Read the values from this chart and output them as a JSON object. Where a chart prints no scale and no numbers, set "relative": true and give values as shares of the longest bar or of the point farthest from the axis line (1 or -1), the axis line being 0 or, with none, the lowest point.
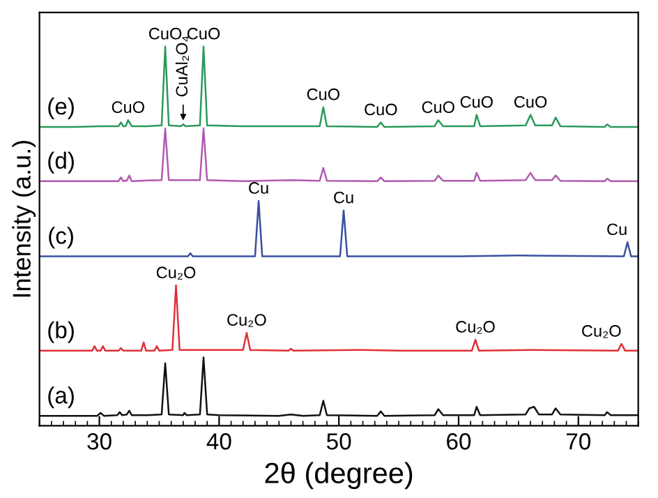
{
  "chart_data": {
    "type": "line",
    "relative": true,
    "xlabel": "2θ (degree)",
    "ylabel": "Intensity (a.u.)",
    "xlim": [
      25,
      75
    ],
    "xticks": [
      30,
      40,
      50,
      60,
      70
    ],
    "grid": false,
    "legend": false,
    "marker": "none",
    "line_style": "solid",
    "series": [
      {
        "color": "#111111",
        "x": [
          25,
          28,
          29.8,
          30.1,
          30.4,
          31.5,
          31.7,
          31.9,
          32.3,
          32.5,
          32.7,
          34,
          35.2,
          35.5,
          35.8,
          37,
          37.1,
          37.3,
          38.4,
          38.7,
          39,
          40,
          45,
          46,
          47,
          48.4,
          48.7,
          49,
          53.2,
          53.5,
          53.8,
          58,
          58.3,
          58.7,
          61.3,
          61.5,
          61.8,
          65.6,
          65.9,
          66.3,
          66.7,
          67.8,
          68.1,
          68.5,
          72.2,
          72.4,
          72.7,
          75
        ],
        "values": [
          0.026,
          0.026,
          0.026,
          0.034,
          0.026,
          0.028,
          0.036,
          0.028,
          0.03,
          0.04,
          0.028,
          0.028,
          0.03,
          0.165,
          0.03,
          0.028,
          0.034,
          0.028,
          0.03,
          0.18,
          0.03,
          0.028,
          0.026,
          0.03,
          0.026,
          0.028,
          0.066,
          0.028,
          0.026,
          0.038,
          0.026,
          0.028,
          0.044,
          0.028,
          0.028,
          0.05,
          0.028,
          0.03,
          0.046,
          0.05,
          0.03,
          0.03,
          0.046,
          0.03,
          0.028,
          0.036,
          0.028,
          0.028
        ]
      },
      {
        "color": "#e03038",
        "x": [
          25,
          29.4,
          29.6,
          29.8,
          30.1,
          30.3,
          30.5,
          31.6,
          31.8,
          32,
          33.5,
          33.7,
          33.9,
          34.6,
          34.8,
          35,
          36.1,
          36.4,
          36.7,
          42,
          42.3,
          42.6,
          45.8,
          46,
          46.2,
          52,
          55,
          61.1,
          61.4,
          61.7,
          66,
          73.3,
          73.6,
          73.9,
          75
        ],
        "values": [
          0.198,
          0.198,
          0.21,
          0.198,
          0.198,
          0.21,
          0.198,
          0.198,
          0.205,
          0.198,
          0.198,
          0.22,
          0.198,
          0.198,
          0.21,
          0.198,
          0.2,
          0.37,
          0.2,
          0.2,
          0.245,
          0.2,
          0.198,
          0.203,
          0.198,
          0.2,
          0.198,
          0.198,
          0.227,
          0.198,
          0.2,
          0.198,
          0.216,
          0.198,
          0.198
        ]
      },
      {
        "color": "#3a4fa0",
        "x": [
          25,
          30,
          37.4,
          37.6,
          37.8,
          43,
          43.3,
          43.6,
          47,
          50.1,
          50.4,
          50.7,
          55,
          60,
          65,
          73.8,
          74.1,
          74.4,
          75
        ],
        "values": [
          0.447,
          0.447,
          0.447,
          0.455,
          0.447,
          0.447,
          0.593,
          0.447,
          0.447,
          0.447,
          0.568,
          0.447,
          0.447,
          0.447,
          0.449,
          0.447,
          0.484,
          0.447,
          0.447
        ]
      },
      {
        "color": "#b05ab0",
        "x": [
          25,
          28,
          30,
          31.6,
          31.8,
          32,
          32.3,
          32.5,
          32.7,
          34,
          35.2,
          35.5,
          35.8,
          37,
          38.4,
          38.7,
          39,
          42,
          46,
          48.4,
          48.7,
          49,
          53.2,
          53.5,
          53.8,
          58,
          58.3,
          58.7,
          61.3,
          61.5,
          61.8,
          65.6,
          66,
          66.4,
          67.8,
          68.1,
          68.5,
          72.2,
          72.4,
          72.7,
          75
        ],
        "values": [
          0.645,
          0.645,
          0.645,
          0.645,
          0.655,
          0.645,
          0.647,
          0.66,
          0.645,
          0.647,
          0.648,
          0.784,
          0.648,
          0.648,
          0.648,
          0.784,
          0.648,
          0.645,
          0.648,
          0.646,
          0.68,
          0.646,
          0.645,
          0.655,
          0.645,
          0.646,
          0.66,
          0.646,
          0.646,
          0.667,
          0.646,
          0.648,
          0.667,
          0.648,
          0.648,
          0.66,
          0.646,
          0.645,
          0.652,
          0.645,
          0.645
        ]
      },
      {
        "color": "#2a9a5a",
        "x": [
          25,
          28,
          30,
          31.6,
          31.8,
          32,
          32.2,
          32.4,
          32.7,
          34,
          35.2,
          35.5,
          35.8,
          36.8,
          37,
          37.2,
          38.4,
          38.7,
          39,
          42,
          46,
          48.4,
          48.7,
          49,
          53.2,
          53.5,
          53.8,
          58,
          58.3,
          58.7,
          61.3,
          61.5,
          61.8,
          65.6,
          66,
          66.4,
          67.8,
          68.1,
          68.5,
          72.2,
          72.4,
          72.7,
          75
        ],
        "values": [
          0.788,
          0.788,
          0.79,
          0.79,
          0.8,
          0.79,
          0.79,
          0.806,
          0.79,
          0.79,
          0.792,
          1,
          0.792,
          0.79,
          0.795,
          0.79,
          0.792,
          1,
          0.792,
          0.79,
          0.79,
          0.79,
          0.84,
          0.79,
          0.788,
          0.8,
          0.788,
          0.79,
          0.806,
          0.79,
          0.79,
          0.82,
          0.79,
          0.792,
          0.82,
          0.792,
          0.792,
          0.813,
          0.79,
          0.788,
          0.795,
          0.788,
          0.788
        ]
      }
    ],
    "annotations": [
      {
        "text": "(a)",
        "x": 26.8,
        "y": 0.026
      },
      {
        "text": "(b)",
        "x": 26.8,
        "y": 0.198
      },
      {
        "text": "(c)",
        "x": 26.8,
        "y": 0.447
      },
      {
        "text": "(d)",
        "x": 26.8,
        "y": 0.645
      },
      {
        "text": "(e)",
        "x": 26.8,
        "y": 0.788
      },
      {
        "text": "CuO",
        "x": 32.4,
        "y": 0.806
      },
      {
        "text": "CuO",
        "x": 35.5,
        "y": 1
      },
      {
        "text": "CuO",
        "x": 38.7,
        "y": 1
      },
      {
        "text": "CuAl₂O₄",
        "x": 37,
        "y": 0.795
      },
      {
        "text": "CuO",
        "x": 48.7,
        "y": 0.84
      },
      {
        "text": "CuO",
        "x": 53.5,
        "y": 0.8
      },
      {
        "text": "CuO",
        "x": 58.3,
        "y": 0.806
      },
      {
        "text": "CuO",
        "x": 61.5,
        "y": 0.82
      },
      {
        "text": "CuO",
        "x": 66,
        "y": 0.82
      },
      {
        "text": "Cu",
        "x": 43.3,
        "y": 0.593
      },
      {
        "text": "Cu",
        "x": 50.4,
        "y": 0.568
      },
      {
        "text": "Cu",
        "x": 74.1,
        "y": 0.484
      },
      {
        "text": "Cu₂O",
        "x": 36.4,
        "y": 0.37
      },
      {
        "text": "Cu₂O",
        "x": 42.3,
        "y": 0.245
      },
      {
        "text": "Cu₂O",
        "x": 61.4,
        "y": 0.227
      },
      {
        "text": "Cu₂O",
        "x": 73.6,
        "y": 0.216
      }
    ]
  }
}
